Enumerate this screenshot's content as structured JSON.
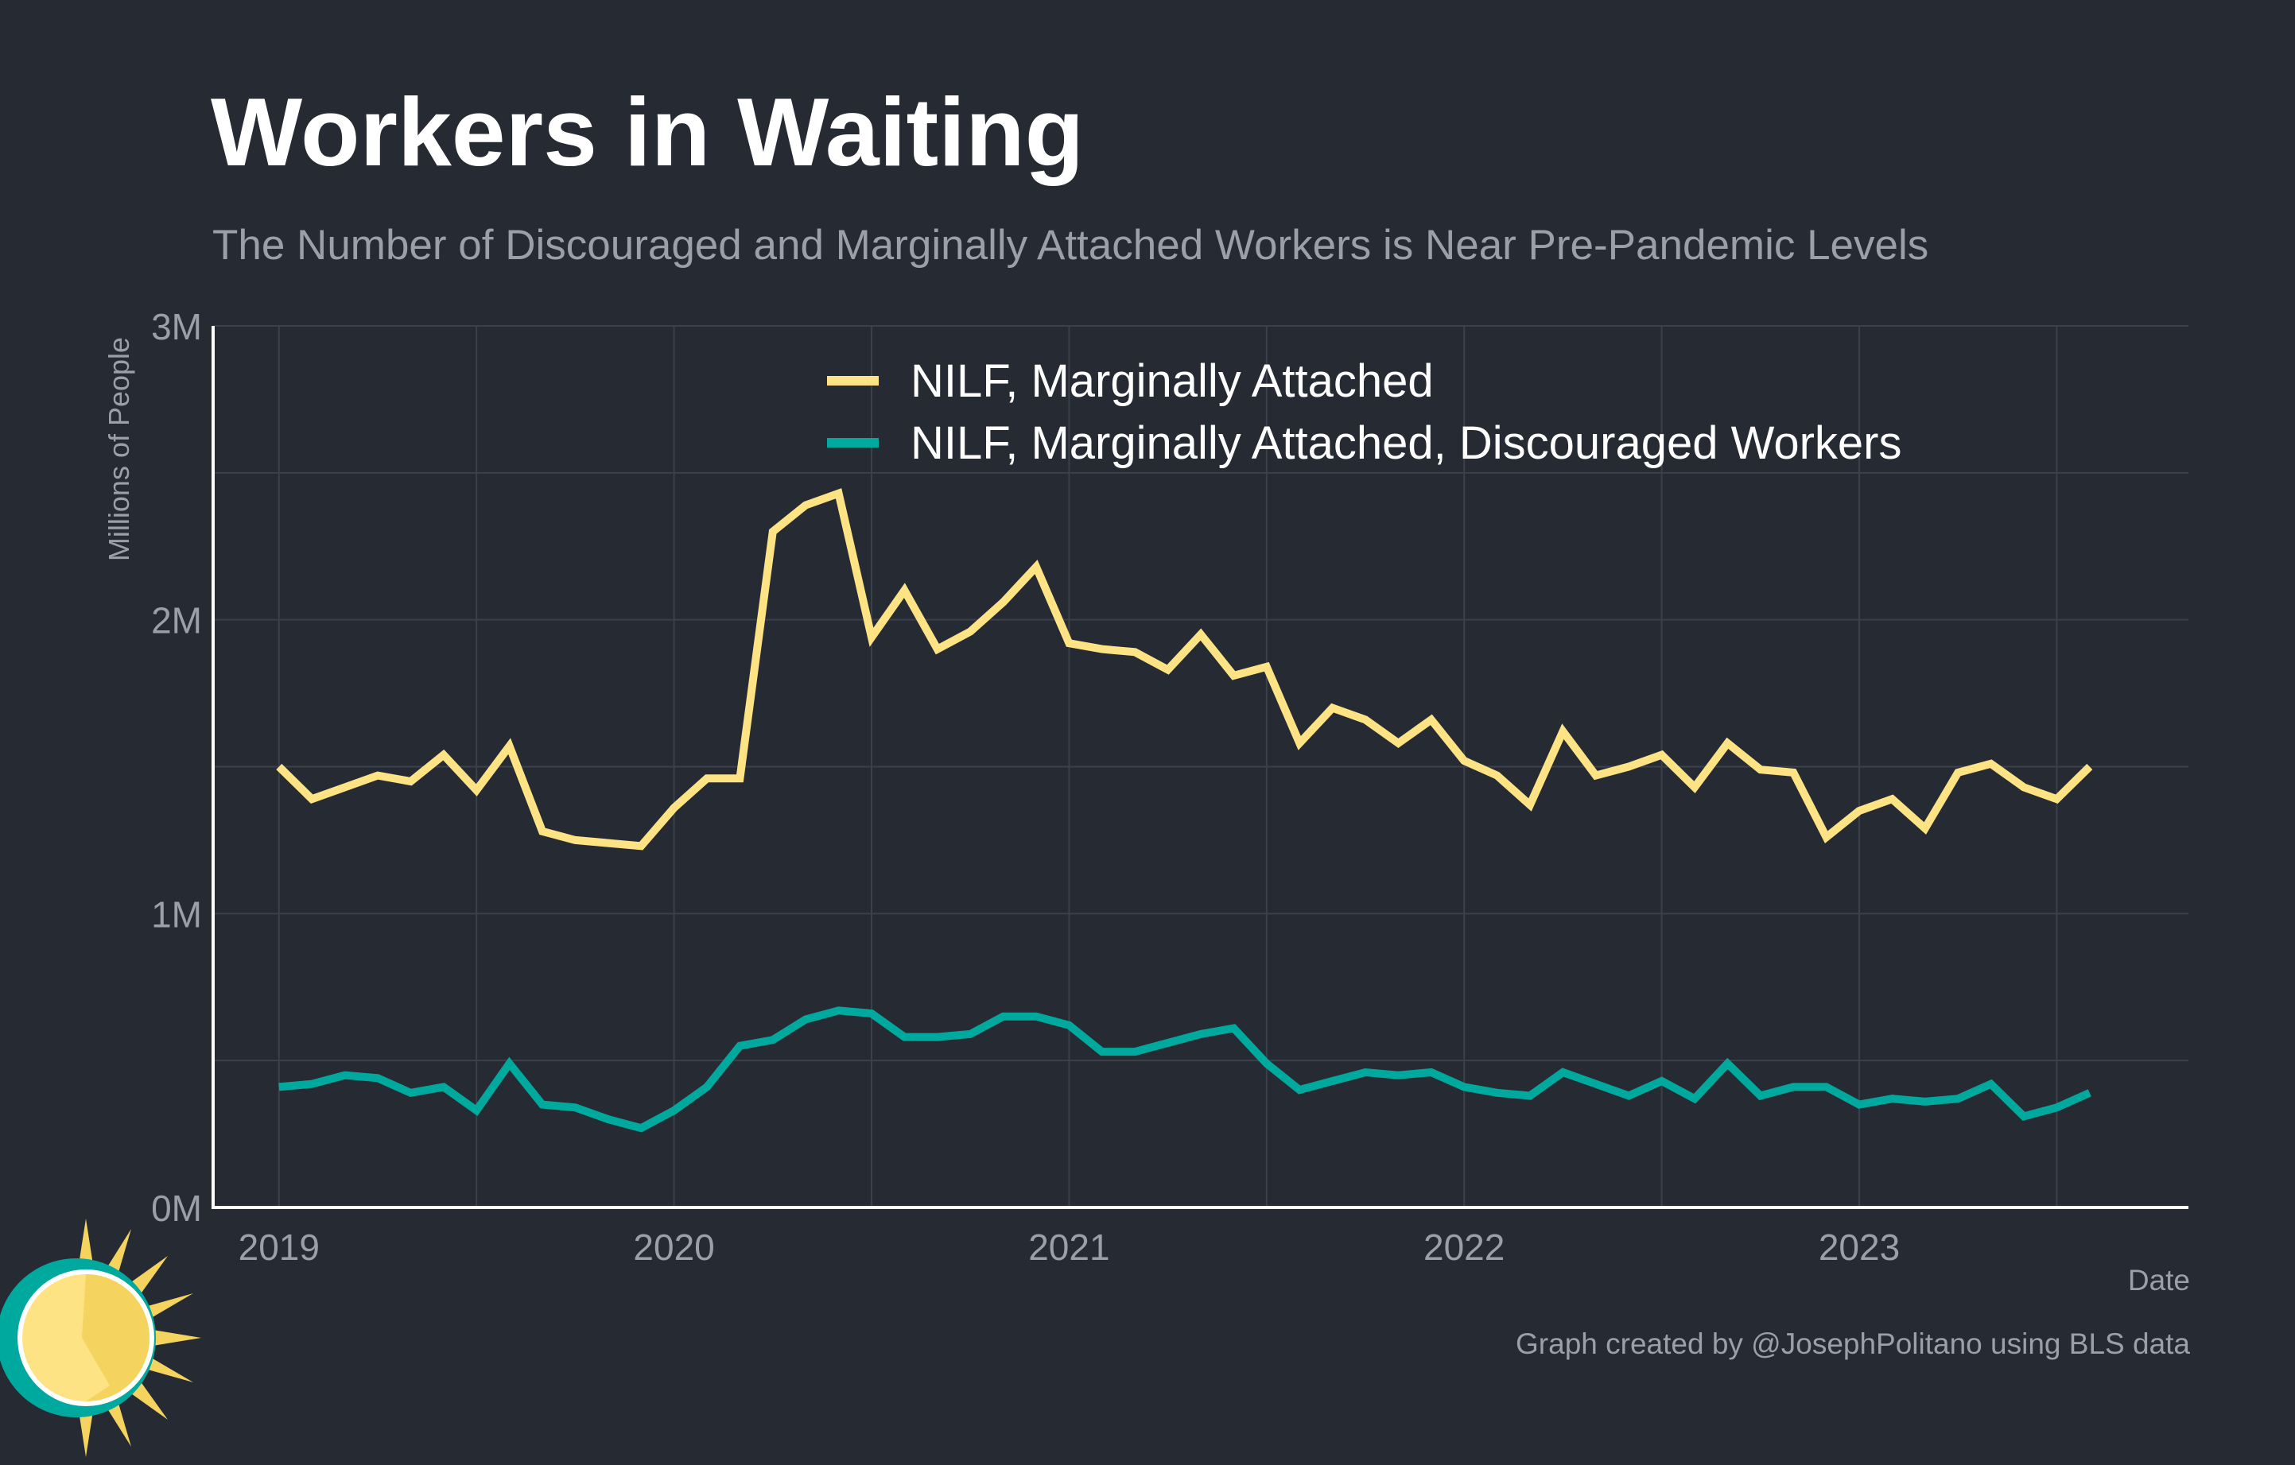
{
  "title": "Workers in Waiting",
  "subtitle": "The Number of Discouraged and Marginally Attached Workers is Near Pre-Pandemic Levels",
  "credit": "Graph created by @JosephPolitano using BLS data",
  "colors": {
    "background": "#252a33",
    "grid": "#3b414b",
    "axis": "#ffffff",
    "series1": "#fde383",
    "series2": "#00a99d"
  },
  "chart_data": {
    "type": "line",
    "xlabel": "Date",
    "ylabel": "Millions of People",
    "xlim": [
      "2018-11",
      "2023-11"
    ],
    "ylim": [
      0,
      3
    ],
    "yticks": [
      0,
      1,
      2,
      3
    ],
    "ytick_labels": [
      "0M",
      "1M",
      "2M",
      "3M"
    ],
    "xticks": [
      "2019-01",
      "2020-01",
      "2021-01",
      "2022-01",
      "2023-01"
    ],
    "xtick_labels": [
      "2019",
      "2020",
      "2021",
      "2022",
      "2023"
    ],
    "grid": true,
    "legend_position": "top-center",
    "x_start": "2019-01",
    "x_step": "monthly",
    "series": [
      {
        "name": "NILF, Marginally Attached",
        "color": "#fde383",
        "values": [
          1.5,
          1.39,
          1.43,
          1.47,
          1.45,
          1.54,
          1.42,
          1.57,
          1.28,
          1.25,
          1.24,
          1.23,
          1.36,
          1.46,
          1.46,
          2.3,
          2.39,
          2.43,
          1.94,
          2.1,
          1.9,
          1.96,
          2.06,
          2.18,
          1.92,
          1.9,
          1.89,
          1.83,
          1.95,
          1.81,
          1.84,
          1.58,
          1.7,
          1.66,
          1.58,
          1.66,
          1.52,
          1.47,
          1.37,
          1.62,
          1.47,
          1.5,
          1.54,
          1.43,
          1.58,
          1.49,
          1.48,
          1.26,
          1.35,
          1.39,
          1.29,
          1.48,
          1.51,
          1.43,
          1.39,
          1.5
        ]
      },
      {
        "name": "NILF, Marginally Attached, Discouraged Workers",
        "color": "#00a99d",
        "values": [
          0.41,
          0.42,
          0.45,
          0.44,
          0.39,
          0.41,
          0.33,
          0.49,
          0.35,
          0.34,
          0.3,
          0.27,
          0.33,
          0.41,
          0.55,
          0.57,
          0.64,
          0.67,
          0.66,
          0.58,
          0.58,
          0.59,
          0.65,
          0.65,
          0.62,
          0.53,
          0.53,
          0.56,
          0.59,
          0.61,
          0.49,
          0.4,
          0.43,
          0.46,
          0.45,
          0.46,
          0.41,
          0.39,
          0.38,
          0.46,
          0.42,
          0.38,
          0.43,
          0.37,
          0.49,
          0.38,
          0.41,
          0.41,
          0.35,
          0.37,
          0.36,
          0.37,
          0.42,
          0.31,
          0.34,
          0.39
        ]
      }
    ]
  }
}
